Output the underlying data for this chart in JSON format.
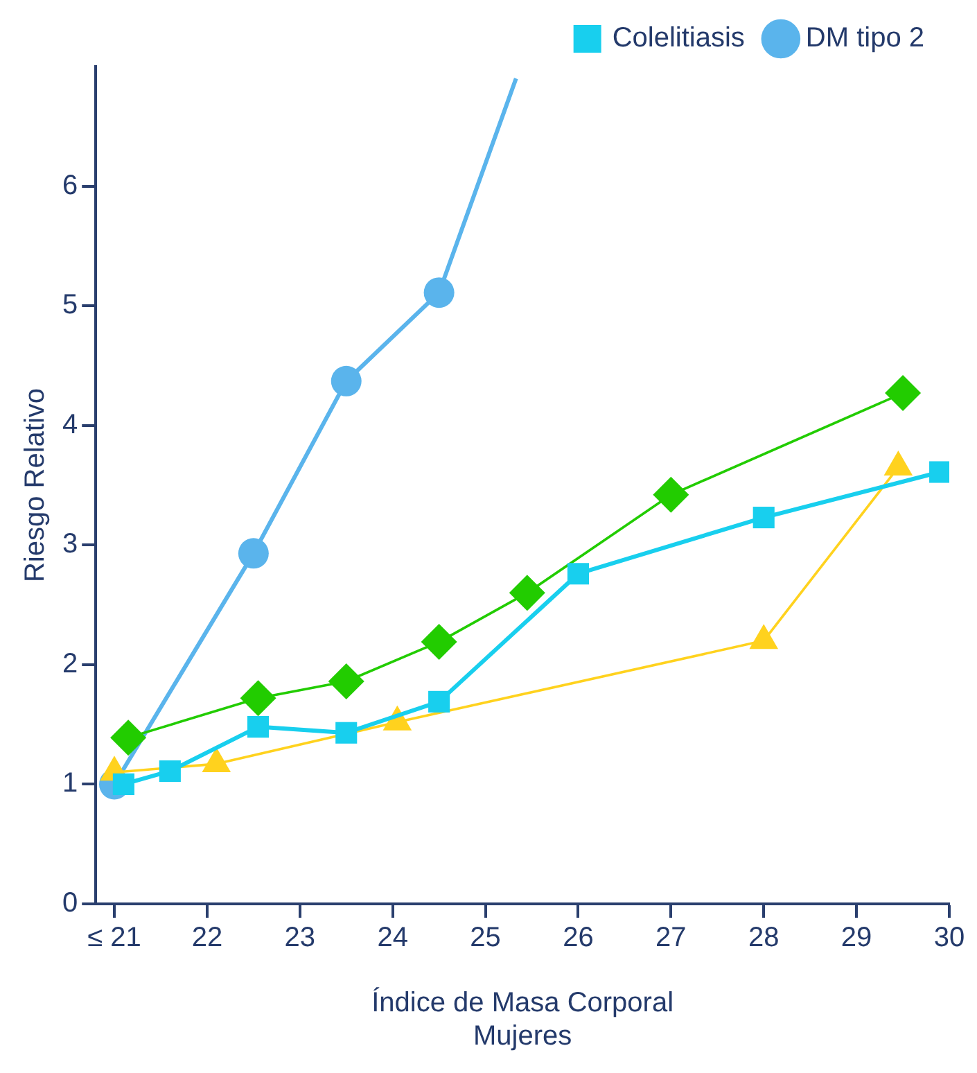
{
  "chart_data": {
    "type": "line",
    "xlabel": "Índice de Masa Corporal\nMujeres",
    "ylabel": "Riesgo Relativo",
    "xlim": [
      20.8,
      30
    ],
    "xticks": [
      {
        "value": 21,
        "label": "≤ 21"
      },
      22,
      23,
      24,
      25,
      26,
      27,
      28,
      29,
      30
    ],
    "ylim": [
      0,
      7
    ],
    "yticks": [
      0,
      1,
      2,
      3,
      4,
      5,
      6
    ],
    "grid": false,
    "legend": "top right",
    "series": [
      {
        "name": "DM tipo 2",
        "color": "#5ab4ec",
        "marker": "circle",
        "x": [
          21,
          22.5,
          23.5,
          24.5,
          25.33
        ],
        "values": [
          1.0,
          2.93,
          4.37,
          5.11,
          6.9
        ]
      },
      {
        "color": "#22cc00",
        "marker": "diamond",
        "x": [
          21.15,
          22.55,
          23.5,
          24.5,
          25.45,
          27,
          29.5
        ],
        "values": [
          1.39,
          1.72,
          1.86,
          2.19,
          2.6,
          3.42,
          4.27
        ]
      },
      {
        "color": "#ffd21e",
        "marker": "triangle",
        "x": [
          21,
          22.1,
          24.05,
          28,
          29.45
        ],
        "values": [
          1.1,
          1.17,
          1.52,
          2.2,
          3.65
        ]
      },
      {
        "name": "Colelitiasis",
        "color": "#18cfee",
        "marker": "square",
        "x": [
          21.1,
          21.6,
          22.55,
          23.5,
          24.5,
          26,
          28,
          29.9
        ],
        "values": [
          1.0,
          1.11,
          1.48,
          1.43,
          1.69,
          2.76,
          3.23,
          3.61
        ]
      }
    ]
  }
}
